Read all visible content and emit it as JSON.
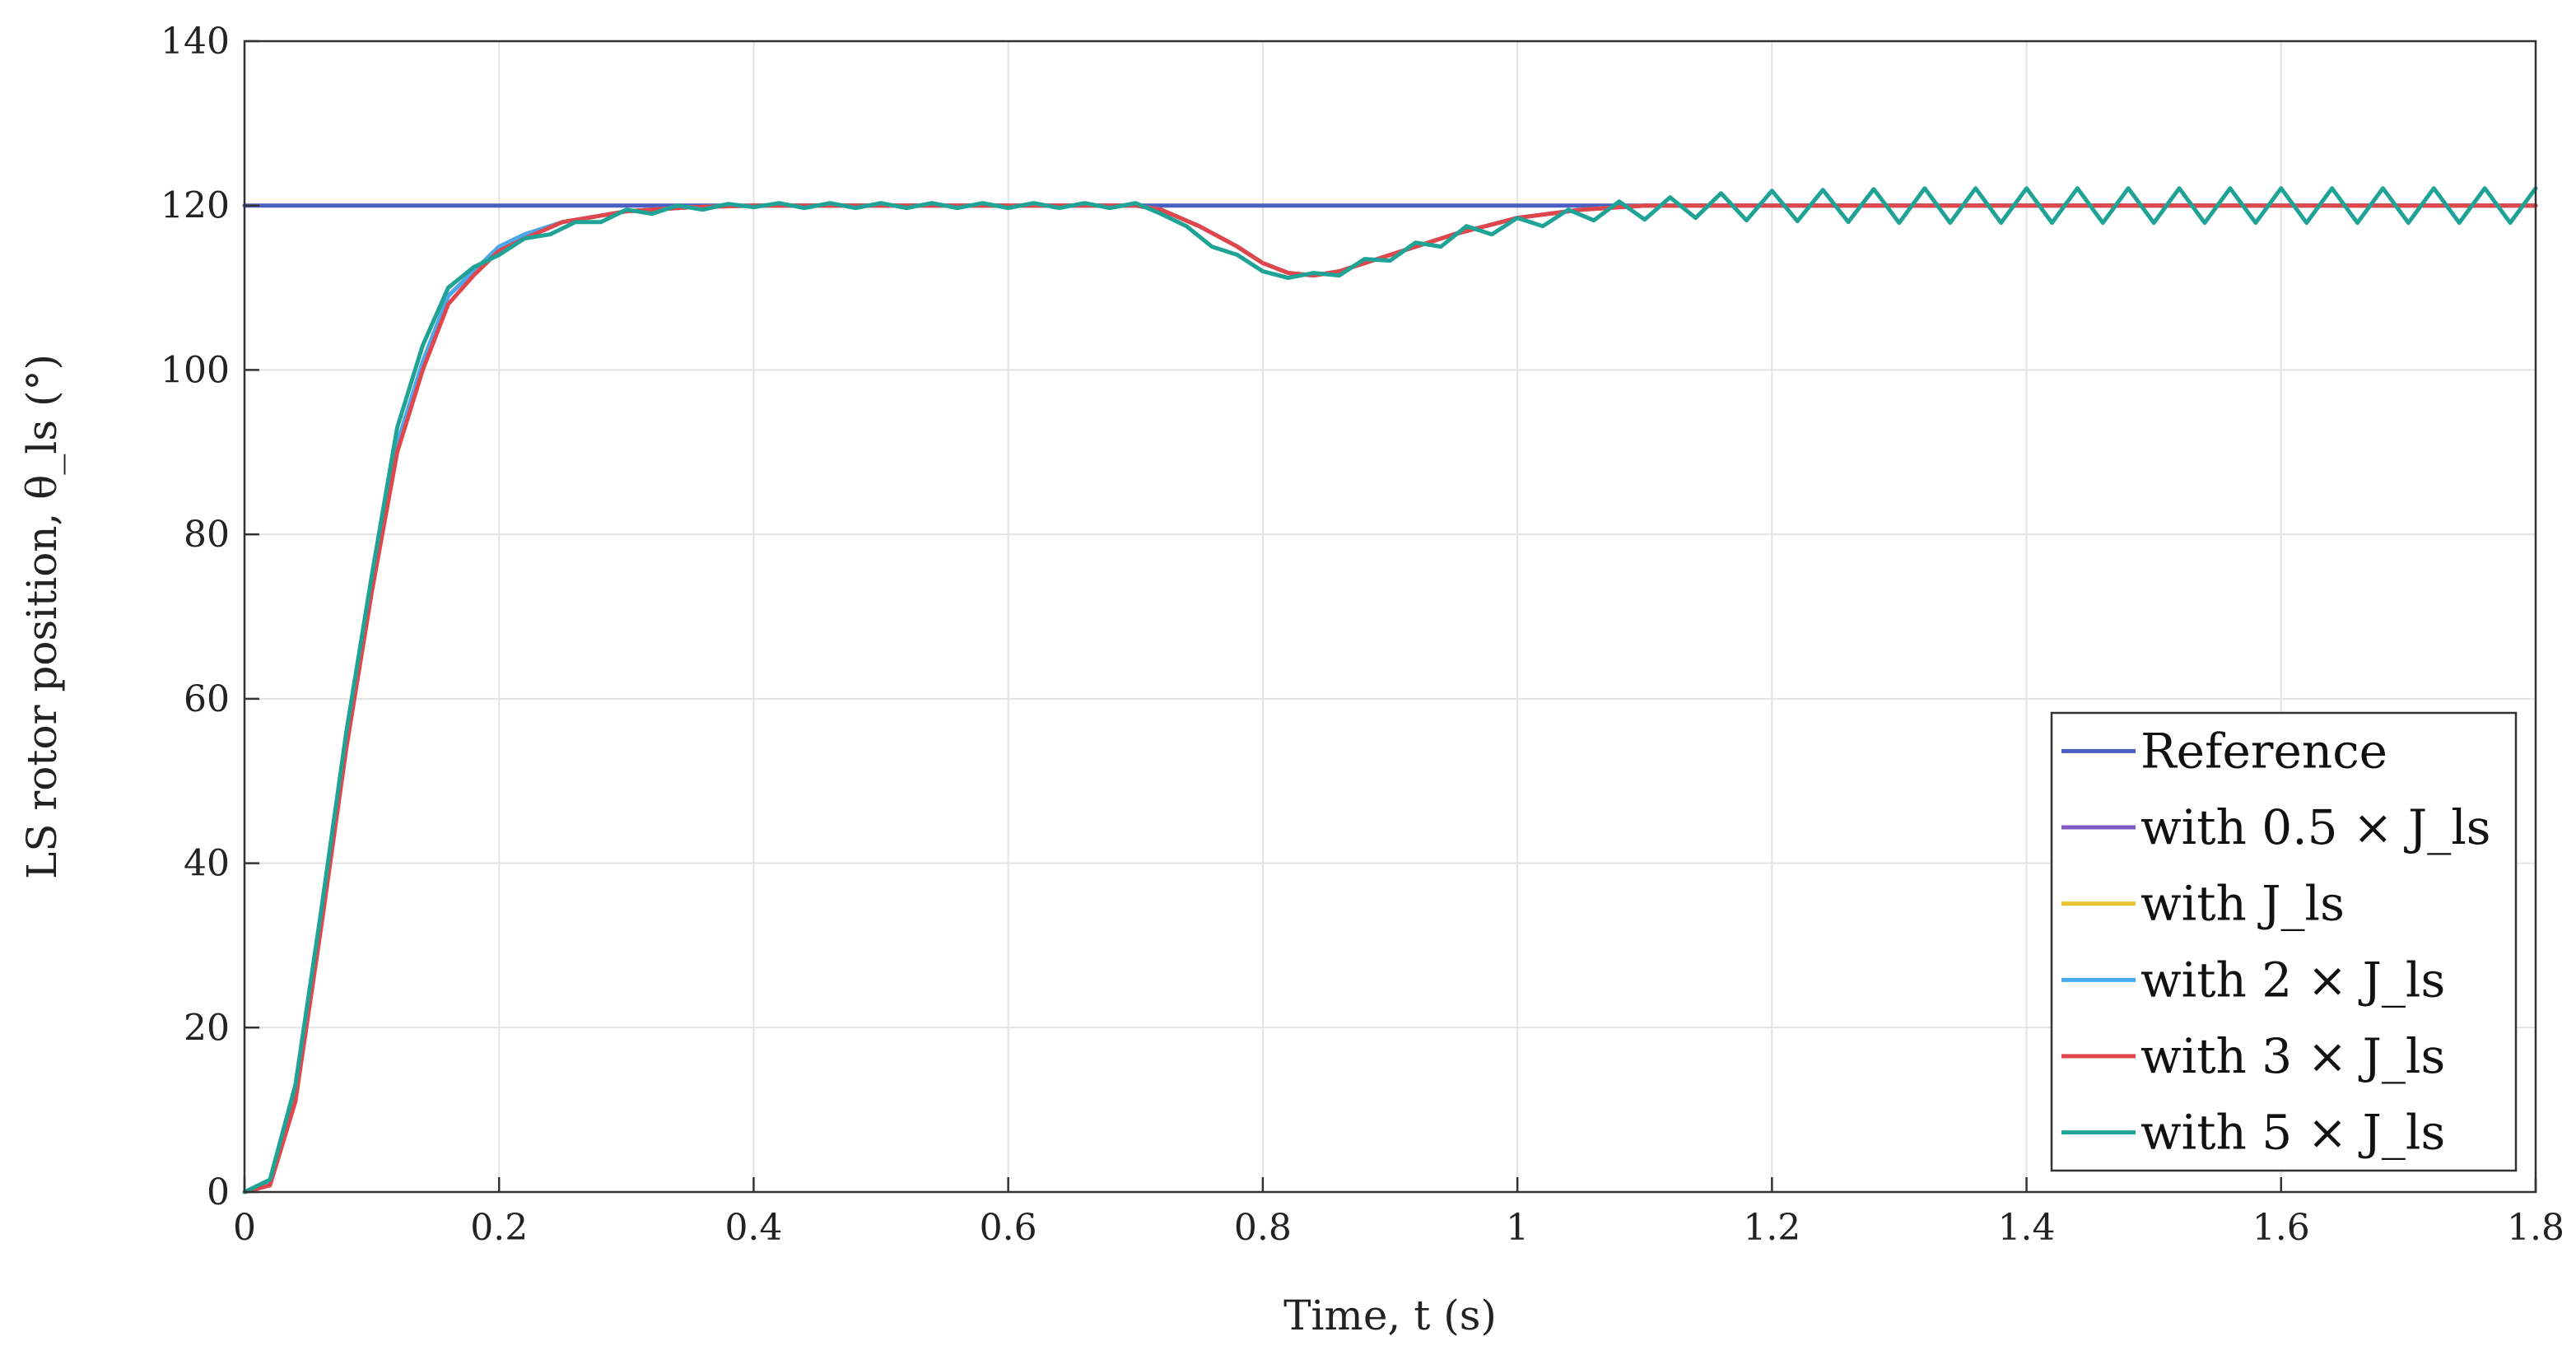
{
  "chart_data": {
    "type": "line",
    "xlabel": "Time, t (s)",
    "ylabel": "LS rotor position, θ_ls (°)",
    "xlim": [
      0,
      1.8
    ],
    "ylim": [
      0,
      140
    ],
    "xticks": [
      0,
      0.2,
      0.4,
      0.6,
      0.8,
      1,
      1.2,
      1.4,
      1.6,
      1.8
    ],
    "yticks": [
      0,
      20,
      40,
      60,
      80,
      100,
      120,
      140
    ],
    "xtick_labels": [
      "0",
      "0.2",
      "0.4",
      "0.6",
      "0.8",
      "1",
      "1.2",
      "1.4",
      "1.6",
      "1.8"
    ],
    "ytick_labels": [
      "0",
      "20",
      "40",
      "60",
      "80",
      "100",
      "120",
      "140"
    ],
    "grid": true,
    "legend_position": "bottom-right",
    "series": [
      {
        "name": "Reference",
        "color": "#4a5fc1",
        "x": [
          0,
          1.8
        ],
        "y": [
          120,
          120
        ]
      },
      {
        "name": "with 0.5 × J_ls",
        "color": "#7e57c2",
        "x": [
          0,
          0.02,
          0.04,
          0.06,
          0.08,
          0.1,
          0.12,
          0.14,
          0.16,
          0.18,
          0.2,
          0.22,
          0.25,
          0.3,
          0.35,
          0.4,
          0.5,
          0.6,
          0.7,
          0.72,
          0.75,
          0.78,
          0.8,
          0.82,
          0.84,
          0.86,
          0.88,
          0.9,
          0.95,
          1.0,
          1.05,
          1.1,
          1.2,
          1.4,
          1.6,
          1.8
        ],
        "y": [
          0,
          1,
          12,
          33,
          55,
          74,
          91,
          101,
          109,
          112,
          115,
          116.5,
          118,
          119.3,
          119.8,
          120,
          120,
          120,
          120,
          119.5,
          117.5,
          115,
          113,
          111.8,
          111.5,
          112,
          113,
          114,
          116.5,
          118.5,
          119.5,
          120,
          120,
          120,
          120,
          120
        ]
      },
      {
        "name": "with J_ls",
        "color": "#edc230",
        "x": [
          0,
          0.02,
          0.04,
          0.06,
          0.08,
          0.1,
          0.12,
          0.14,
          0.16,
          0.18,
          0.2,
          0.22,
          0.25,
          0.3,
          0.35,
          0.4,
          0.5,
          0.6,
          0.7,
          0.72,
          0.75,
          0.78,
          0.8,
          0.82,
          0.84,
          0.86,
          0.88,
          0.9,
          0.95,
          1.0,
          1.05,
          1.1,
          1.2,
          1.4,
          1.6,
          1.8
        ],
        "y": [
          0,
          1,
          12,
          33,
          55,
          74,
          91,
          101,
          109,
          112,
          115,
          116.5,
          118,
          119.3,
          119.8,
          120,
          120,
          120,
          120,
          119.5,
          117.5,
          115,
          113,
          111.8,
          111.5,
          112,
          113,
          114,
          116.5,
          118.5,
          119.5,
          120,
          120,
          120,
          120,
          120
        ]
      },
      {
        "name": "with 2 × J_ls",
        "color": "#4aa8f0",
        "x": [
          0,
          0.02,
          0.04,
          0.06,
          0.08,
          0.1,
          0.12,
          0.14,
          0.16,
          0.18,
          0.2,
          0.22,
          0.25,
          0.3,
          0.35,
          0.4,
          0.5,
          0.6,
          0.7,
          0.72,
          0.75,
          0.78,
          0.8,
          0.82,
          0.84,
          0.86,
          0.88,
          0.9,
          0.95,
          1.0,
          1.05,
          1.1,
          1.2,
          1.4,
          1.6,
          1.8
        ],
        "y": [
          0,
          1,
          12,
          33,
          55,
          74,
          91,
          101,
          109,
          112,
          115,
          116.5,
          118,
          119.3,
          119.8,
          120,
          120,
          120,
          120,
          119.5,
          117.5,
          115,
          113,
          111.8,
          111.5,
          112,
          113,
          114,
          116.5,
          118.5,
          119.5,
          120,
          120,
          120,
          120,
          120
        ]
      },
      {
        "name": "with 3 × J_ls",
        "color": "#e0474c",
        "x": [
          0,
          0.02,
          0.04,
          0.06,
          0.08,
          0.1,
          0.12,
          0.14,
          0.16,
          0.18,
          0.2,
          0.22,
          0.25,
          0.3,
          0.35,
          0.4,
          0.5,
          0.6,
          0.7,
          0.72,
          0.75,
          0.78,
          0.8,
          0.82,
          0.84,
          0.86,
          0.88,
          0.9,
          0.95,
          1.0,
          1.05,
          1.1,
          1.2,
          1.4,
          1.6,
          1.8
        ],
        "y": [
          0,
          0.8,
          11,
          32,
          54,
          73,
          90,
          100,
          108,
          111.5,
          114.5,
          116,
          118,
          119.3,
          119.8,
          120,
          120,
          120,
          120,
          119.5,
          117.5,
          115,
          113,
          111.8,
          111.5,
          112,
          113,
          114,
          116.5,
          118.5,
          119.5,
          120,
          120,
          120,
          120,
          120
        ]
      },
      {
        "name": "with 5 × J_ls",
        "color": "#1fa396",
        "x": [
          0,
          0.02,
          0.04,
          0.06,
          0.08,
          0.1,
          0.12,
          0.14,
          0.16,
          0.18,
          0.2,
          0.22,
          0.24,
          0.26,
          0.28,
          0.3,
          0.32,
          0.34,
          0.36,
          0.38,
          0.4,
          0.42,
          0.44,
          0.46,
          0.48,
          0.5,
          0.52,
          0.54,
          0.56,
          0.58,
          0.6,
          0.62,
          0.64,
          0.66,
          0.68,
          0.7,
          0.72,
          0.74,
          0.76,
          0.78,
          0.8,
          0.82,
          0.84,
          0.86,
          0.88,
          0.9,
          0.92,
          0.94,
          0.96,
          0.98,
          1.0,
          1.02,
          1.04,
          1.06,
          1.08,
          1.1,
          1.12,
          1.14,
          1.16,
          1.18,
          1.2,
          1.22,
          1.24,
          1.26,
          1.28,
          1.3,
          1.32,
          1.34,
          1.36,
          1.38,
          1.4,
          1.42,
          1.44,
          1.46,
          1.48,
          1.5,
          1.52,
          1.54,
          1.56,
          1.58,
          1.6,
          1.62,
          1.64,
          1.66,
          1.68,
          1.7,
          1.72,
          1.74,
          1.76,
          1.78,
          1.8
        ],
        "y": [
          0,
          1.5,
          13,
          34,
          56,
          75,
          93,
          103,
          110,
          112.5,
          114,
          116,
          116.5,
          118,
          118,
          119.5,
          119,
          120,
          119.5,
          120.2,
          119.8,
          120.3,
          119.7,
          120.3,
          119.7,
          120.3,
          119.7,
          120.3,
          119.7,
          120.3,
          119.7,
          120.3,
          119.7,
          120.3,
          119.7,
          120.3,
          119,
          117.5,
          115,
          114,
          112,
          111.2,
          111.8,
          111.5,
          113.5,
          113.3,
          115.5,
          115,
          117.5,
          116.5,
          118.5,
          117.5,
          119.5,
          118.2,
          120.5,
          118.3,
          121,
          118.5,
          121.5,
          118.2,
          121.8,
          118.1,
          121.9,
          118,
          122,
          117.9,
          122.1,
          117.9,
          122.1,
          117.9,
          122.1,
          117.9,
          122.1,
          117.9,
          122.1,
          117.9,
          122.1,
          117.9,
          122.1,
          117.9,
          122.1,
          117.9,
          122.1,
          117.9,
          122.1,
          117.9,
          122.1,
          117.9,
          122.1,
          117.9,
          122.1
        ]
      }
    ]
  }
}
